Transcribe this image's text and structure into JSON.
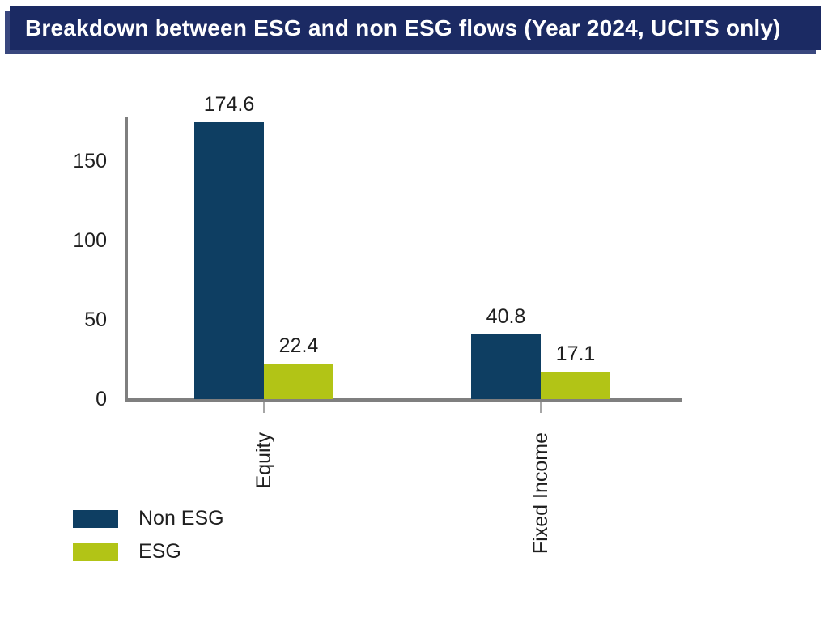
{
  "header": {
    "title": "Breakdown between ESG and non ESG flows (Year 2024, UCITS only)",
    "bg_color": "#1b2a63",
    "shadow_color": "#39477e",
    "text_color": "#ffffff"
  },
  "chart_data": {
    "type": "bar",
    "title": "Breakdown between ESG and non ESG flows (Year 2024, UCITS only)",
    "categories": [
      "Equity",
      "Fixed Income"
    ],
    "series": [
      {
        "name": "Non ESG",
        "color": "#0e3e62",
        "values": [
          174.6,
          40.8
        ]
      },
      {
        "name": "ESG",
        "color": "#b2c416",
        "values": [
          22.4,
          17.1
        ]
      }
    ],
    "value_labels": [
      [
        "174.6",
        "40.8"
      ],
      [
        "22.4",
        "17.1"
      ]
    ],
    "yticks": [
      0,
      50,
      100,
      150
    ],
    "ylim": [
      0,
      178
    ],
    "xlabel": "",
    "ylabel": "",
    "grid": false,
    "legend_position": "bottom-left",
    "value_labels_shown": true,
    "axis_color": "#7f7f7f",
    "tick_color": "#a6a6a6",
    "label_color": "#1f1f1f"
  }
}
